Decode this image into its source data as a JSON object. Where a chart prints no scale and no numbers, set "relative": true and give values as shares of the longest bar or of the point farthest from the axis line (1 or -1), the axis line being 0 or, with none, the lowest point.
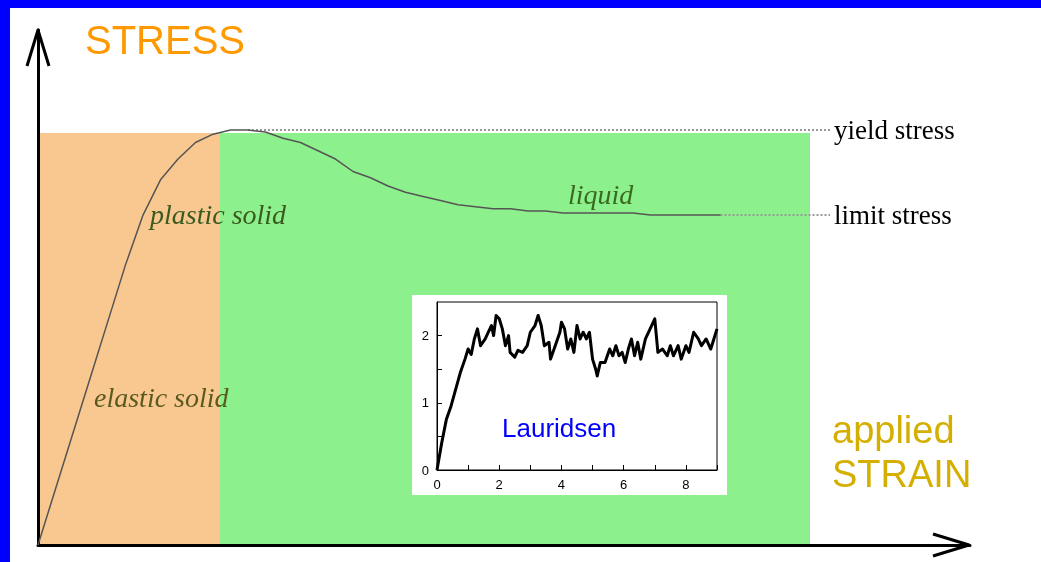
{
  "chart_data": [
    {
      "type": "line",
      "relative": true,
      "xlabel": "applied STRAIN",
      "ylabel": "STRESS",
      "categories": [
        null,
        null,
        null,
        null,
        null,
        null,
        null,
        null,
        null,
        null,
        null,
        null,
        null,
        null,
        null,
        null,
        null,
        null,
        null,
        null,
        null,
        null,
        null,
        null,
        null,
        null,
        null,
        null,
        null,
        null,
        null,
        null,
        null,
        null,
        null,
        null,
        null,
        null,
        null,
        null
      ],
      "series": [
        {
          "color": "#555555",
          "values": [
            0,
            0.135,
            0.27,
            0.405,
            0.54,
            0.675,
            0.795,
            0.88,
            0.93,
            0.97,
            0.99,
            1,
            1,
            0.995,
            0.98,
            0.97,
            0.95,
            0.93,
            0.9,
            0.885,
            0.865,
            0.85,
            0.84,
            0.83,
            0.82,
            0.815,
            0.81,
            0.81,
            0.805,
            0.805,
            0.8,
            0.8,
            0.8,
            0.8,
            0.8,
            0.795,
            0.795,
            0.795,
            0.795,
            0.795
          ]
        }
      ],
      "annotations": [
        "elastic solid",
        "plastic solid",
        "liquid"
      ],
      "ref_lines": [
        {
          "axis": "y",
          "value": 1,
          "label": "yield stress",
          "color": "#999999",
          "line_style": "dotted"
        },
        {
          "axis": "y",
          "value": 0.795,
          "label": "limit stress",
          "color": "#999999",
          "line_style": "dotted"
        }
      ]
    },
    {
      "type": "line",
      "annotations": [
        "Lauridsen"
      ],
      "xlim": [
        0,
        9
      ],
      "xticks": [
        0,
        {
          "value": 1,
          "label": null
        },
        2,
        {
          "value": 3,
          "label": null
        },
        4,
        {
          "value": 5,
          "label": null
        },
        6,
        {
          "value": 7,
          "label": null
        },
        8,
        {
          "value": 9,
          "label": null
        }
      ],
      "ylim": [
        0,
        2.5
      ],
      "yticks": [
        0,
        {
          "value": 0.5,
          "label": null
        },
        1,
        {
          "value": 1.5,
          "label": null
        },
        2
      ],
      "series": [
        {
          "color": "#000000",
          "x": [
            0,
            0.15,
            0.3,
            0.45,
            0.6,
            0.75,
            0.9,
            1.0,
            1.1,
            1.2,
            1.3,
            1.4,
            1.55,
            1.65,
            1.75,
            1.82,
            1.9,
            2.0,
            2.1,
            2.2,
            2.3,
            2.35,
            2.5,
            2.6,
            2.75,
            2.9,
            3.0,
            3.15,
            3.25,
            3.35,
            3.45,
            3.6,
            3.65,
            3.8,
            3.95,
            4.0,
            4.1,
            4.2,
            4.3,
            4.4,
            4.5,
            4.6,
            4.7,
            4.8,
            4.9,
            5.0,
            5.1,
            5.15,
            5.25,
            5.4,
            5.55,
            5.65,
            5.75,
            5.85,
            5.95,
            6.05,
            6.15,
            6.25,
            6.35,
            6.45,
            6.55,
            6.7,
            6.85,
            7.0,
            7.1,
            7.25,
            7.4,
            7.5,
            7.6,
            7.75,
            7.85,
            8.0,
            8.1,
            8.25,
            8.4,
            8.5,
            8.65,
            8.8,
            8.9,
            9.0
          ],
          "values": [
            0,
            0.4,
            0.75,
            0.95,
            1.2,
            1.45,
            1.65,
            1.8,
            1.72,
            1.95,
            2.1,
            1.85,
            1.95,
            2.05,
            2.15,
            2.0,
            2.3,
            2.25,
            2.1,
            1.85,
            2.0,
            1.75,
            1.68,
            1.78,
            1.75,
            1.85,
            2.05,
            2.15,
            2.3,
            2.15,
            1.85,
            1.9,
            1.65,
            1.85,
            2.05,
            2.2,
            2.1,
            1.8,
            1.95,
            1.75,
            2.15,
            1.95,
            2.05,
            1.95,
            2.05,
            1.65,
            1.5,
            1.4,
            1.6,
            1.6,
            1.8,
            1.7,
            1.85,
            1.7,
            1.75,
            1.6,
            1.8,
            1.95,
            1.7,
            1.9,
            1.65,
            1.95,
            2.1,
            2.25,
            1.75,
            1.8,
            1.7,
            1.85,
            1.7,
            1.85,
            1.65,
            1.85,
            1.75,
            2.05,
            1.95,
            1.85,
            1.95,
            1.8,
            1.95,
            2.1
          ]
        }
      ]
    }
  ]
}
